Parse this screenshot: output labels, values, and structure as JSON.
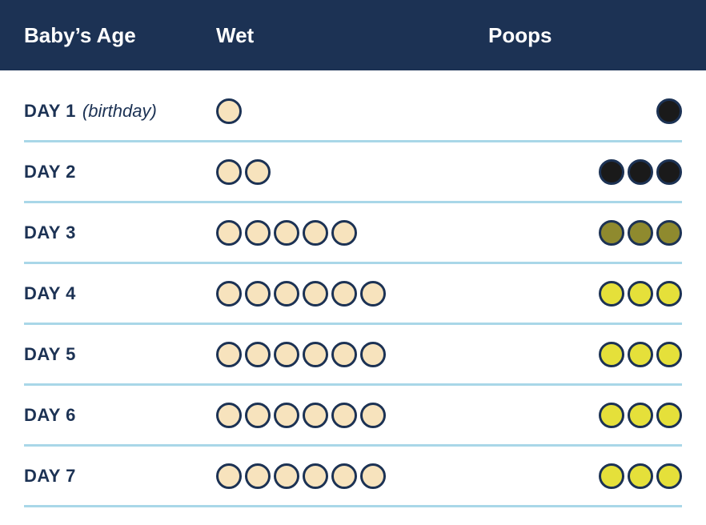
{
  "style": {
    "header_bg": "#1c3254",
    "header_text_color": "#ffffff",
    "text_color": "#1c3254",
    "divider_color": "#a9d7e8",
    "divider_width": 3,
    "circle_border_color": "#1c3254",
    "circle_border_width": 3,
    "circle_diameter": 32,
    "font_family": "Arial, Helvetica, sans-serif"
  },
  "colors": {
    "wet": "#f7e3bd",
    "poop_black": "#1a1a1a",
    "poop_olive": "#8f8a2e",
    "poop_yellow": "#e5e03a"
  },
  "headers": {
    "age": "Baby’s Age",
    "wet": "Wet",
    "poops": "Poops"
  },
  "rows": [
    {
      "day": "DAY 1",
      "note": "(birthday)",
      "wet_count": 1,
      "poop_count": 1,
      "poop_color_key": "poop_black"
    },
    {
      "day": "DAY 2",
      "note": "",
      "wet_count": 2,
      "poop_count": 3,
      "poop_color_key": "poop_black"
    },
    {
      "day": "DAY 3",
      "note": "",
      "wet_count": 5,
      "poop_count": 3,
      "poop_color_key": "poop_olive"
    },
    {
      "day": "DAY 4",
      "note": "",
      "wet_count": 6,
      "poop_count": 3,
      "poop_color_key": "poop_yellow"
    },
    {
      "day": "DAY 5",
      "note": "",
      "wet_count": 6,
      "poop_count": 3,
      "poop_color_key": "poop_yellow"
    },
    {
      "day": "DAY 6",
      "note": "",
      "wet_count": 6,
      "poop_count": 3,
      "poop_color_key": "poop_yellow"
    },
    {
      "day": "DAY 7",
      "note": "",
      "wet_count": 6,
      "poop_count": 3,
      "poop_color_key": "poop_yellow"
    }
  ]
}
